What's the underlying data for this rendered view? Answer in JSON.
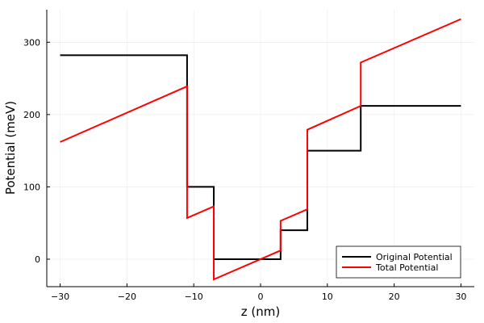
{
  "chart_data": {
    "type": "line",
    "title": "",
    "xlabel": "z (nm)",
    "ylabel": "Potential (meV)",
    "xlim": [
      -32,
      32
    ],
    "ylim": [
      -38,
      345
    ],
    "xticks": [
      -30,
      -20,
      -10,
      0,
      10,
      20,
      30
    ],
    "yticks": [
      0,
      100,
      200,
      300
    ],
    "xtick_labels": [
      "−30",
      "−20",
      "−10",
      "0",
      "10",
      "20",
      "30"
    ],
    "ytick_labels": [
      "0",
      "100",
      "200",
      "300"
    ],
    "grid": true,
    "legend_position": "bottom-right",
    "series": [
      {
        "name": "Original Potential",
        "color": "#000000",
        "x": [
          -30,
          -11,
          -11,
          -7,
          -7,
          3,
          3,
          7,
          7,
          15,
          15,
          30
        ],
        "y": [
          282,
          282,
          100,
          100,
          0,
          0,
          40,
          40,
          150,
          150,
          212,
          212
        ]
      },
      {
        "name": "Total Potential",
        "color": "#ff0000",
        "x": [
          -30,
          -11,
          -11,
          -7,
          -7,
          3,
          3,
          7,
          7,
          15,
          15,
          30
        ],
        "y": [
          162,
          239,
          57,
          73,
          -28,
          12,
          53,
          69,
          179,
          212,
          272,
          332
        ]
      }
    ]
  }
}
